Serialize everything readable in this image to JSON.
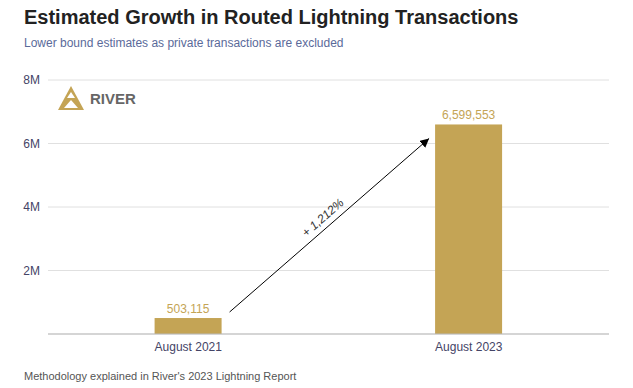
{
  "chart_data": {
    "type": "bar",
    "title": "Estimated Growth in Routed Lightning Transactions",
    "subtitle": "Lower bound estimates as private transactions are excluded",
    "footnote": "Methodology explained in River's 2023 Lightning Report",
    "categories": [
      "August 2021",
      "August 2023"
    ],
    "values": [
      503115,
      6599553
    ],
    "value_labels": [
      "503,115",
      "6,599,553"
    ],
    "data_labels": true,
    "color": "#C4A455",
    "ylim": [
      0,
      8000000
    ],
    "yticks": [
      {
        "value": 0,
        "label": ""
      },
      {
        "value": 2000000,
        "label": "2M"
      },
      {
        "value": 4000000,
        "label": "4M"
      },
      {
        "value": 6000000,
        "label": "6M"
      },
      {
        "value": 8000000,
        "label": "8M"
      }
    ],
    "grid": true,
    "annotations": [
      {
        "text": "+ 1,212%"
      },
      {
        "text": "RIVER"
      }
    ]
  }
}
